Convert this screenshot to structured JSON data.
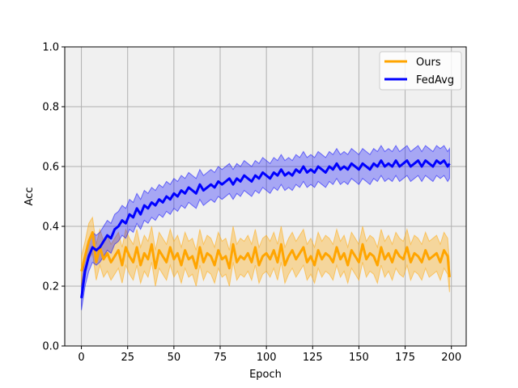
{
  "chart_data": {
    "type": "line",
    "xlabel": "Epoch",
    "ylabel": "Acc",
    "xlim": [
      -9,
      208
    ],
    "ylim": [
      0.0,
      1.0
    ],
    "xticks": [
      0,
      25,
      50,
      75,
      100,
      125,
      150,
      175,
      200
    ],
    "yticks": [
      0.0,
      0.2,
      0.4,
      0.6,
      0.8,
      1.0
    ],
    "xtick_labels": [
      "0",
      "25",
      "50",
      "75",
      "100",
      "125",
      "150",
      "175",
      "200"
    ],
    "ytick_labels": [
      "0.0",
      "0.2",
      "0.4",
      "0.6",
      "0.8",
      "1.0"
    ],
    "grid": true,
    "legend_position": "top-right",
    "plot_background": "#f0f0f0",
    "series": [
      {
        "name": "Ours",
        "color": "#ffa500",
        "band_opacity": 0.35,
        "x": [
          0,
          2,
          4,
          6,
          8,
          10,
          12,
          14,
          16,
          18,
          20,
          22,
          24,
          26,
          28,
          30,
          32,
          34,
          36,
          38,
          40,
          42,
          44,
          46,
          48,
          50,
          52,
          54,
          56,
          58,
          60,
          62,
          64,
          66,
          68,
          70,
          72,
          74,
          76,
          78,
          80,
          82,
          84,
          86,
          88,
          90,
          92,
          94,
          96,
          98,
          100,
          102,
          104,
          106,
          108,
          110,
          112,
          114,
          116,
          118,
          120,
          122,
          124,
          126,
          128,
          130,
          132,
          134,
          136,
          138,
          140,
          142,
          144,
          146,
          148,
          150,
          152,
          154,
          156,
          158,
          160,
          162,
          164,
          166,
          168,
          170,
          172,
          174,
          176,
          178,
          180,
          182,
          184,
          186,
          188,
          190,
          192,
          194,
          196,
          198,
          199
        ],
        "mean": [
          0.25,
          0.3,
          0.35,
          0.38,
          0.28,
          0.33,
          0.29,
          0.31,
          0.28,
          0.3,
          0.32,
          0.27,
          0.33,
          0.3,
          0.28,
          0.33,
          0.27,
          0.31,
          0.29,
          0.34,
          0.26,
          0.32,
          0.3,
          0.28,
          0.33,
          0.29,
          0.31,
          0.27,
          0.32,
          0.29,
          0.3,
          0.26,
          0.33,
          0.28,
          0.31,
          0.3,
          0.27,
          0.32,
          0.29,
          0.3,
          0.26,
          0.34,
          0.28,
          0.3,
          0.29,
          0.31,
          0.28,
          0.33,
          0.27,
          0.3,
          0.31,
          0.29,
          0.32,
          0.28,
          0.34,
          0.27,
          0.3,
          0.32,
          0.29,
          0.31,
          0.33,
          0.28,
          0.3,
          0.27,
          0.32,
          0.29,
          0.31,
          0.3,
          0.28,
          0.33,
          0.29,
          0.31,
          0.27,
          0.32,
          0.3,
          0.28,
          0.34,
          0.29,
          0.31,
          0.3,
          0.27,
          0.33,
          0.29,
          0.31,
          0.28,
          0.32,
          0.3,
          0.29,
          0.33,
          0.28,
          0.31,
          0.3,
          0.28,
          0.32,
          0.29,
          0.3,
          0.31,
          0.28,
          0.32,
          0.3,
          0.23
        ],
        "lower": [
          0.2,
          0.25,
          0.29,
          0.31,
          0.22,
          0.27,
          0.23,
          0.25,
          0.22,
          0.24,
          0.26,
          0.21,
          0.27,
          0.24,
          0.22,
          0.27,
          0.21,
          0.25,
          0.23,
          0.28,
          0.2,
          0.26,
          0.24,
          0.22,
          0.27,
          0.23,
          0.25,
          0.21,
          0.26,
          0.23,
          0.24,
          0.2,
          0.27,
          0.22,
          0.25,
          0.24,
          0.21,
          0.26,
          0.23,
          0.24,
          0.2,
          0.28,
          0.22,
          0.24,
          0.23,
          0.25,
          0.22,
          0.27,
          0.21,
          0.24,
          0.25,
          0.23,
          0.26,
          0.22,
          0.28,
          0.21,
          0.24,
          0.26,
          0.23,
          0.25,
          0.27,
          0.22,
          0.24,
          0.21,
          0.26,
          0.23,
          0.25,
          0.24,
          0.22,
          0.27,
          0.23,
          0.25,
          0.21,
          0.26,
          0.24,
          0.22,
          0.28,
          0.23,
          0.25,
          0.24,
          0.21,
          0.27,
          0.23,
          0.25,
          0.22,
          0.26,
          0.24,
          0.23,
          0.27,
          0.22,
          0.25,
          0.24,
          0.22,
          0.26,
          0.23,
          0.24,
          0.25,
          0.22,
          0.26,
          0.24,
          0.18
        ],
        "upper": [
          0.3,
          0.35,
          0.41,
          0.43,
          0.34,
          0.39,
          0.35,
          0.37,
          0.34,
          0.36,
          0.38,
          0.33,
          0.39,
          0.36,
          0.34,
          0.39,
          0.33,
          0.37,
          0.35,
          0.4,
          0.32,
          0.38,
          0.36,
          0.34,
          0.39,
          0.35,
          0.37,
          0.33,
          0.38,
          0.35,
          0.36,
          0.32,
          0.39,
          0.34,
          0.37,
          0.36,
          0.33,
          0.38,
          0.35,
          0.36,
          0.32,
          0.4,
          0.34,
          0.36,
          0.35,
          0.37,
          0.34,
          0.39,
          0.33,
          0.36,
          0.37,
          0.35,
          0.38,
          0.34,
          0.4,
          0.33,
          0.36,
          0.38,
          0.35,
          0.37,
          0.39,
          0.34,
          0.36,
          0.33,
          0.38,
          0.35,
          0.37,
          0.36,
          0.34,
          0.39,
          0.35,
          0.37,
          0.33,
          0.38,
          0.36,
          0.34,
          0.4,
          0.35,
          0.37,
          0.36,
          0.33,
          0.39,
          0.35,
          0.37,
          0.34,
          0.38,
          0.36,
          0.35,
          0.39,
          0.34,
          0.37,
          0.36,
          0.34,
          0.38,
          0.35,
          0.36,
          0.37,
          0.34,
          0.38,
          0.36,
          0.28
        ]
      },
      {
        "name": "FedAvg",
        "color": "#0000ff",
        "band_opacity": 0.3,
        "x": [
          0,
          2,
          4,
          6,
          8,
          10,
          12,
          14,
          16,
          18,
          20,
          22,
          24,
          26,
          28,
          30,
          32,
          34,
          36,
          38,
          40,
          42,
          44,
          46,
          48,
          50,
          52,
          54,
          56,
          58,
          60,
          62,
          64,
          66,
          68,
          70,
          72,
          74,
          76,
          78,
          80,
          82,
          84,
          86,
          88,
          90,
          92,
          94,
          96,
          98,
          100,
          102,
          104,
          106,
          108,
          110,
          112,
          114,
          116,
          118,
          120,
          122,
          124,
          126,
          128,
          130,
          132,
          134,
          136,
          138,
          140,
          142,
          144,
          146,
          148,
          150,
          152,
          154,
          156,
          158,
          160,
          162,
          164,
          166,
          168,
          170,
          172,
          174,
          176,
          178,
          180,
          182,
          184,
          186,
          188,
          190,
          192,
          194,
          196,
          198,
          199
        ],
        "mean": [
          0.16,
          0.25,
          0.3,
          0.33,
          0.32,
          0.33,
          0.35,
          0.37,
          0.36,
          0.39,
          0.4,
          0.42,
          0.41,
          0.44,
          0.43,
          0.46,
          0.44,
          0.47,
          0.46,
          0.48,
          0.47,
          0.49,
          0.48,
          0.5,
          0.49,
          0.51,
          0.5,
          0.52,
          0.51,
          0.53,
          0.52,
          0.51,
          0.54,
          0.52,
          0.53,
          0.54,
          0.53,
          0.55,
          0.54,
          0.55,
          0.56,
          0.54,
          0.56,
          0.55,
          0.57,
          0.56,
          0.55,
          0.57,
          0.56,
          0.58,
          0.57,
          0.56,
          0.58,
          0.57,
          0.59,
          0.57,
          0.58,
          0.57,
          0.59,
          0.58,
          0.6,
          0.58,
          0.59,
          0.58,
          0.6,
          0.59,
          0.58,
          0.6,
          0.59,
          0.61,
          0.59,
          0.6,
          0.59,
          0.61,
          0.6,
          0.59,
          0.61,
          0.6,
          0.59,
          0.61,
          0.6,
          0.62,
          0.6,
          0.61,
          0.6,
          0.62,
          0.6,
          0.61,
          0.62,
          0.6,
          0.61,
          0.62,
          0.6,
          0.62,
          0.61,
          0.6,
          0.62,
          0.61,
          0.62,
          0.6,
          0.61
        ],
        "lower": [
          0.12,
          0.2,
          0.25,
          0.28,
          0.27,
          0.28,
          0.3,
          0.32,
          0.31,
          0.34,
          0.35,
          0.37,
          0.36,
          0.39,
          0.38,
          0.41,
          0.39,
          0.42,
          0.41,
          0.43,
          0.42,
          0.44,
          0.43,
          0.45,
          0.44,
          0.46,
          0.45,
          0.47,
          0.46,
          0.48,
          0.47,
          0.46,
          0.49,
          0.47,
          0.48,
          0.49,
          0.48,
          0.5,
          0.49,
          0.5,
          0.51,
          0.49,
          0.51,
          0.5,
          0.52,
          0.51,
          0.5,
          0.52,
          0.51,
          0.53,
          0.52,
          0.51,
          0.53,
          0.52,
          0.54,
          0.52,
          0.53,
          0.52,
          0.54,
          0.53,
          0.55,
          0.53,
          0.54,
          0.53,
          0.55,
          0.54,
          0.53,
          0.55,
          0.54,
          0.56,
          0.54,
          0.55,
          0.54,
          0.56,
          0.55,
          0.54,
          0.56,
          0.55,
          0.54,
          0.56,
          0.55,
          0.57,
          0.55,
          0.56,
          0.55,
          0.57,
          0.55,
          0.56,
          0.57,
          0.55,
          0.56,
          0.57,
          0.55,
          0.57,
          0.56,
          0.55,
          0.57,
          0.56,
          0.57,
          0.55,
          0.56
        ],
        "upper": [
          0.2,
          0.3,
          0.35,
          0.38,
          0.37,
          0.38,
          0.4,
          0.42,
          0.41,
          0.44,
          0.45,
          0.47,
          0.46,
          0.49,
          0.48,
          0.51,
          0.49,
          0.52,
          0.51,
          0.53,
          0.52,
          0.54,
          0.53,
          0.55,
          0.54,
          0.56,
          0.55,
          0.57,
          0.56,
          0.58,
          0.57,
          0.56,
          0.59,
          0.57,
          0.58,
          0.59,
          0.58,
          0.6,
          0.59,
          0.6,
          0.61,
          0.59,
          0.61,
          0.6,
          0.62,
          0.61,
          0.6,
          0.62,
          0.61,
          0.63,
          0.62,
          0.61,
          0.63,
          0.62,
          0.64,
          0.62,
          0.63,
          0.62,
          0.64,
          0.63,
          0.65,
          0.63,
          0.64,
          0.63,
          0.65,
          0.64,
          0.63,
          0.65,
          0.64,
          0.66,
          0.64,
          0.65,
          0.64,
          0.66,
          0.65,
          0.64,
          0.66,
          0.65,
          0.64,
          0.66,
          0.65,
          0.67,
          0.65,
          0.66,
          0.65,
          0.67,
          0.65,
          0.66,
          0.67,
          0.65,
          0.66,
          0.67,
          0.65,
          0.67,
          0.66,
          0.65,
          0.67,
          0.66,
          0.67,
          0.65,
          0.66
        ]
      }
    ]
  }
}
